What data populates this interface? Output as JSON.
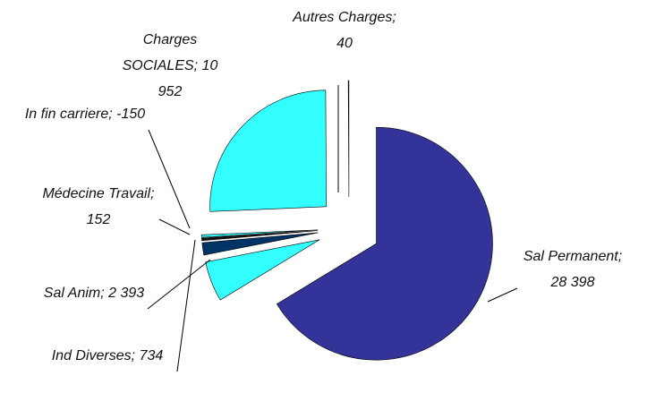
{
  "chart_data": {
    "type": "pie",
    "categories": [
      "Sal Permanent",
      "Sal Anim",
      "Ind Diverses",
      "Médecine Travail",
      "In fin carriere",
      "Charges SOCIALES",
      "Autres Charges"
    ],
    "values": [
      28398,
      2393,
      734,
      152,
      -150,
      10952,
      40
    ],
    "value_labels": [
      "28 398",
      "2 393",
      "734",
      "152",
      "-150",
      "10 952",
      "40"
    ],
    "label_separator": ";",
    "colors": [
      "#333399",
      "#33ffff",
      "#003366",
      "#111111",
      "#33ffff",
      "#33ffff",
      "#222222"
    ]
  }
}
